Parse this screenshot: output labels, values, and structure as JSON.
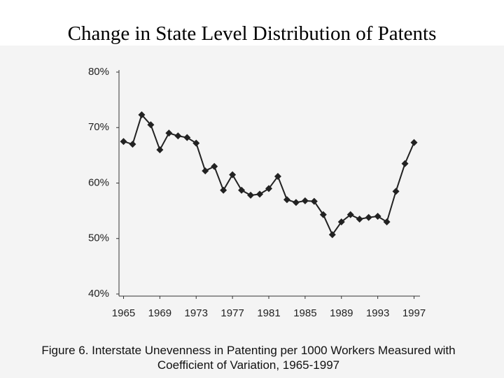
{
  "chart_data": {
    "type": "line",
    "title": "Change in State Level Distribution of Patents",
    "caption": [
      "Figure 6. Interstate Unevenness in Patenting per 1000 Workers Measured with",
      "Coefficient of Variation, 1965-1997"
    ],
    "x": [
      1965,
      1966,
      1967,
      1968,
      1969,
      1970,
      1971,
      1972,
      1973,
      1974,
      1975,
      1976,
      1977,
      1978,
      1979,
      1980,
      1981,
      1982,
      1983,
      1984,
      1985,
      1986,
      1987,
      1988,
      1989,
      1990,
      1991,
      1992,
      1993,
      1994,
      1995,
      1996,
      1997
    ],
    "series": [
      {
        "name": "Coefficient of Variation",
        "color": "#222222",
        "values": [
          67.5,
          67,
          72.3,
          70.5,
          66,
          69,
          68.5,
          68.2,
          67.2,
          62.2,
          63,
          58.7,
          61.5,
          58.7,
          57.8,
          58,
          59,
          61.2,
          57,
          56.5,
          56.8,
          56.7,
          54.3,
          50.7,
          53,
          54.3,
          53.5,
          53.8,
          54,
          53,
          58.5,
          63.5,
          67.3
        ]
      }
    ],
    "xlim": [
      1964.5,
      1997.5
    ],
    "xticks": [
      1965,
      1969,
      1973,
      1977,
      1981,
      1985,
      1989,
      1993,
      1997
    ],
    "ylim": [
      40,
      80
    ],
    "yticks": [
      {
        "value": 40,
        "label": "40%"
      },
      {
        "value": 50,
        "label": "50%"
      },
      {
        "value": 60,
        "label": "60%"
      },
      {
        "value": 70,
        "label": "70%"
      },
      {
        "value": 80,
        "label": "80%"
      }
    ]
  }
}
